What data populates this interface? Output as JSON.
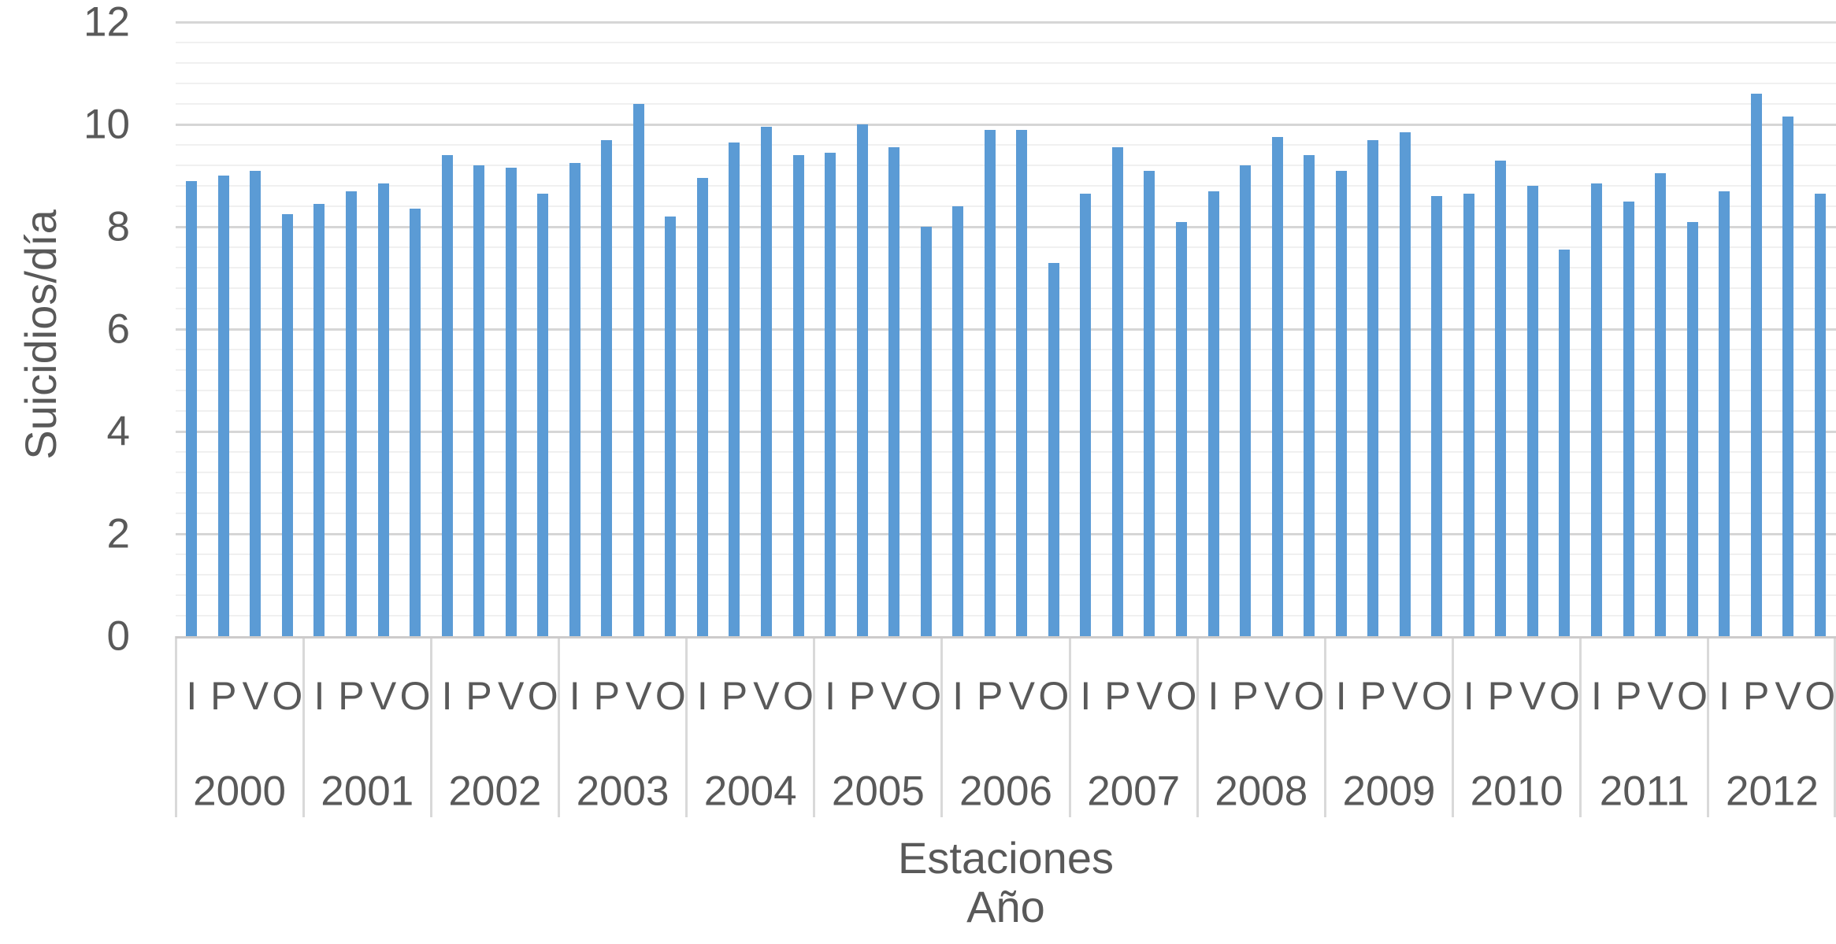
{
  "chart_data": {
    "type": "bar",
    "title": "",
    "ylabel": "Suicidios/día",
    "xlabel_line1": "Estaciones",
    "xlabel_line2": "Año",
    "ylim": [
      0,
      12
    ],
    "y_major_unit": 2,
    "y_minor_unit": 0.4,
    "y_tick_labels": [
      "0",
      "2",
      "4",
      "6",
      "8",
      "10",
      "12"
    ],
    "grid": "major and minor horizontal gridlines",
    "legend_position": "none",
    "season_labels": [
      "I",
      "P",
      "V",
      "O"
    ],
    "categories_note": "seasons I=Invierno P=Primavera V=Verano O=Otoño nested under years",
    "groups": [
      {
        "year": "2000",
        "values": [
          8.9,
          9.0,
          9.1,
          8.25
        ]
      },
      {
        "year": "2001",
        "values": [
          8.45,
          8.7,
          8.85,
          8.35
        ]
      },
      {
        "year": "2002",
        "values": [
          9.4,
          9.2,
          9.15,
          8.65
        ]
      },
      {
        "year": "2003",
        "values": [
          9.25,
          9.7,
          10.4,
          8.2
        ]
      },
      {
        "year": "2004",
        "values": [
          8.95,
          9.65,
          9.95,
          9.4
        ]
      },
      {
        "year": "2005",
        "values": [
          9.45,
          10.0,
          9.55,
          8.0
        ]
      },
      {
        "year": "2006",
        "values": [
          8.4,
          9.9,
          9.9,
          7.3
        ]
      },
      {
        "year": "2007",
        "values": [
          8.65,
          9.55,
          9.1,
          8.1
        ]
      },
      {
        "year": "2008",
        "values": [
          8.7,
          9.2,
          9.75,
          9.4
        ]
      },
      {
        "year": "2009",
        "values": [
          9.1,
          9.7,
          9.85,
          8.6
        ]
      },
      {
        "year": "2010",
        "values": [
          8.65,
          9.3,
          8.8,
          7.55
        ]
      },
      {
        "year": "2011",
        "values": [
          8.85,
          8.5,
          9.05,
          8.1
        ]
      },
      {
        "year": "2012",
        "values": [
          8.7,
          10.6,
          10.15,
          8.65
        ]
      }
    ],
    "colors": {
      "bar": "#5B9BD5",
      "text": "#595959",
      "grid_major": "#D6D6D6",
      "grid_minor": "#F0F0F0",
      "axis_line": "#CDCBCB",
      "group_separator": "#D9D9D9",
      "background": "#FFFFFF"
    }
  }
}
